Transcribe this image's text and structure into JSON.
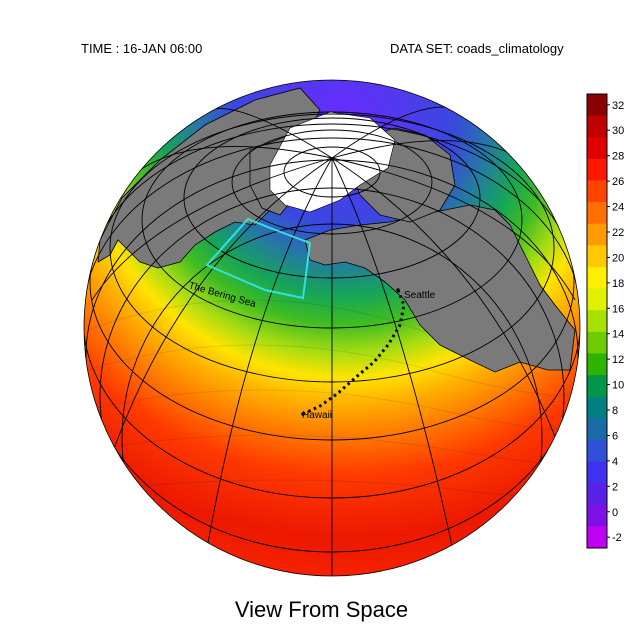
{
  "header": {
    "time": "TIME : 16-JAN 06:00",
    "dataset": "DATA SET: coads_climatology"
  },
  "title": "View From Space",
  "annotations": {
    "region": "The Bering Sea",
    "seattle": "Seattle",
    "hawaii": "Hawaii"
  },
  "colorbar": {
    "ticks": [
      "32",
      "30",
      "28",
      "26",
      "24",
      "22",
      "20",
      "18",
      "16",
      "14",
      "12",
      "10",
      "8",
      "6",
      "4",
      "2",
      "0",
      "-2"
    ],
    "colors": [
      "#8b0000",
      "#c00000",
      "#e00000",
      "#ff1800",
      "#ff4400",
      "#ff7000",
      "#ff9a00",
      "#ffc800",
      "#ffee00",
      "#e0f000",
      "#a8e000",
      "#6ccc00",
      "#2eb400",
      "#009848",
      "#008080",
      "#1a6aa8",
      "#3050d8",
      "#4030f0",
      "#5a20e8",
      "#8010e8",
      "#c000f0"
    ]
  },
  "colors": {
    "land": "#7a7a7a",
    "ice": "#ffffff",
    "box": "#33e0e0"
  }
}
